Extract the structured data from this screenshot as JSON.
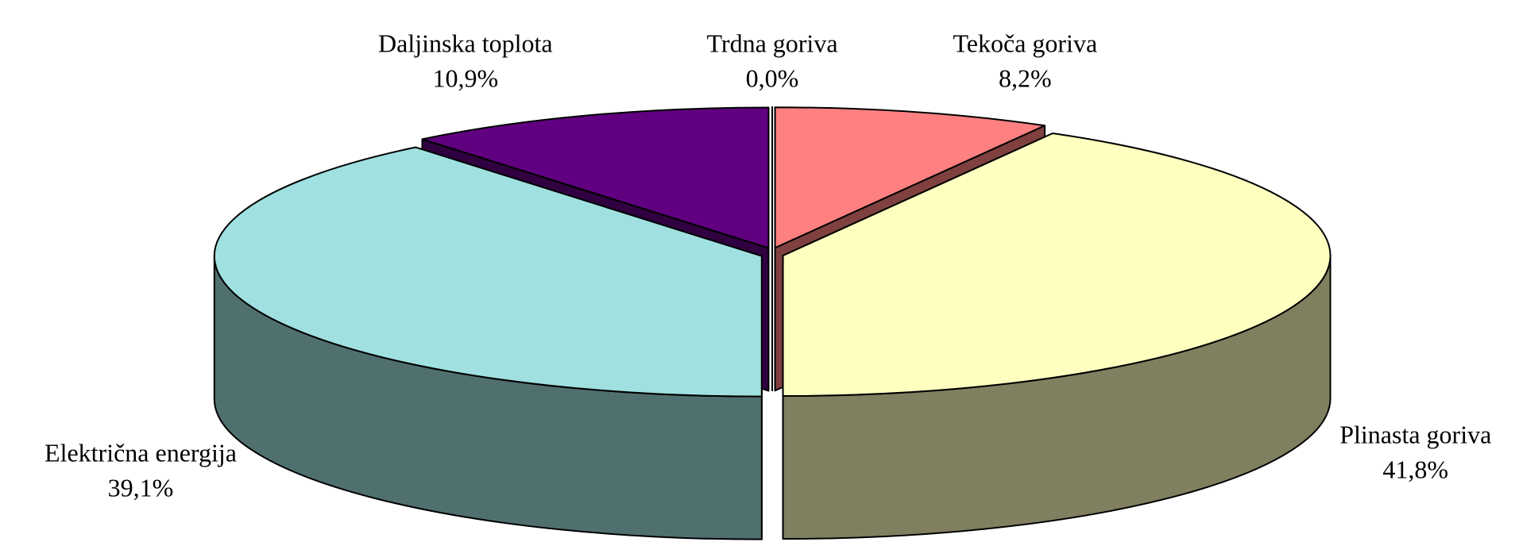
{
  "chart_data": {
    "type": "pie3d",
    "categories": [
      "Trdna goriva",
      "Tekoča goriva",
      "Plinasta goriva",
      "Električna energija",
      "Daljinska toplota"
    ],
    "values": [
      0.0,
      8.2,
      41.8,
      39.1,
      10.9
    ],
    "value_labels": [
      "0,0%",
      "8,2%",
      "41,8%",
      "39,1%",
      "10,9%"
    ],
    "colors": [
      "#ffffff",
      "#ff8080",
      "#ffffc0",
      "#a0e0e0",
      "#600080"
    ]
  }
}
